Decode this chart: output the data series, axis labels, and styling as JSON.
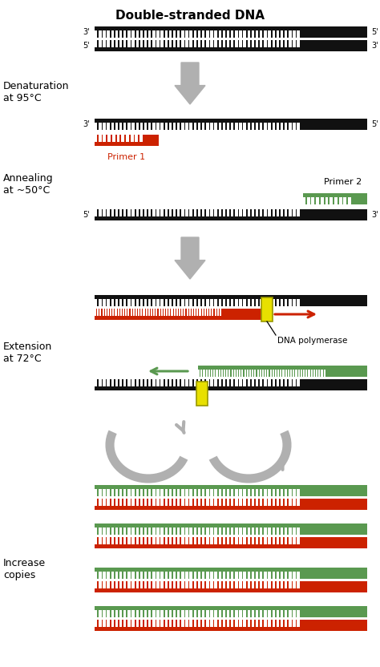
{
  "title": "Double-stranded DNA",
  "bg_color": "#ffffff",
  "dna_black": "#111111",
  "dna_white": "#ffffff",
  "primer_red": "#cc2200",
  "primer_green": "#5a9950",
  "arrow_gray": "#b0b0b0",
  "yellow": "#e8e000",
  "labels": {
    "denaturation": "Denaturation\nat 95°C",
    "annealing": "Annealing\nat ~50°C",
    "extension": "Extension\nat 72°C",
    "increase": "Increase\ncopies",
    "primer1": "Primer 1",
    "primer2": "Primer 2",
    "dna_poly": "DNA polymerase"
  },
  "figsize": [
    4.74,
    8.32
  ],
  "dpi": 100
}
